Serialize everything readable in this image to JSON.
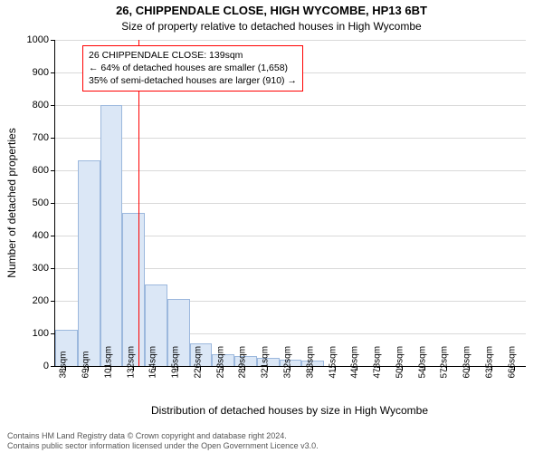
{
  "chart": {
    "type": "histogram",
    "title_line1": "26, CHIPPENDALE CLOSE, HIGH WYCOMBE, HP13 6BT",
    "title_line2": "Size of property relative to detached houses in High Wycombe",
    "ylabel": "Number of detached properties",
    "xlabel": "Distribution of detached houses by size in High Wycombe",
    "title_fontsize": 13,
    "subtitle_fontsize": 12,
    "label_fontsize": 12,
    "tick_fontsize": 11,
    "background_color": "#ffffff",
    "grid_color": "#d9d9d9",
    "axis_color": "#000000",
    "bar_fill": "#dbe7f6",
    "bar_stroke": "#9cb8dd",
    "bar_width_ratio": 1.0,
    "ylim": [
      0,
      1000
    ],
    "ytick_step": 100,
    "yticks": [
      0,
      100,
      200,
      300,
      400,
      500,
      600,
      700,
      800,
      900,
      1000
    ],
    "x_categories": [
      "38sqm",
      "69sqm",
      "101sqm",
      "132sqm",
      "164sqm",
      "195sqm",
      "226sqm",
      "258sqm",
      "289sqm",
      "321sqm",
      "352sqm",
      "383sqm",
      "415sqm",
      "446sqm",
      "478sqm",
      "509sqm",
      "540sqm",
      "572sqm",
      "603sqm",
      "635sqm",
      "666sqm"
    ],
    "values": [
      110,
      630,
      800,
      470,
      250,
      205,
      70,
      35,
      30,
      25,
      20,
      18,
      0,
      0,
      0,
      0,
      0,
      0,
      0,
      0,
      0
    ],
    "reference": {
      "value_sqm": 139,
      "line_color": "#ff0000",
      "line_width": 1,
      "annotation_border": "#ff0000",
      "lines": [
        "26 CHIPPENDALE CLOSE: 139sqm",
        "← 64% of detached houses are smaller (1,658)",
        "35% of semi-detached houses are larger (910) →"
      ]
    },
    "footer": [
      "Contains HM Land Registry data © Crown copyright and database right 2024.",
      "Contains public sector information licensed under the Open Government Licence v3.0."
    ]
  }
}
